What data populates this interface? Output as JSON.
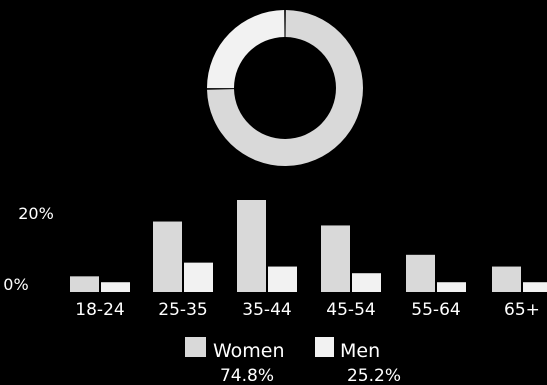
{
  "chart_data": [
    {
      "type": "pie",
      "style": "donut",
      "slices": [
        {
          "name": "Women",
          "value": 74.8
        },
        {
          "name": "Men",
          "value": 25.2
        }
      ],
      "colors": {
        "Women": "#d9d9d9",
        "Men": "#f2f2f2"
      }
    },
    {
      "type": "bar",
      "categories": [
        "18-24",
        "25-35",
        "35-44",
        "45-54",
        "55-64",
        "65+"
      ],
      "series": [
        {
          "name": "Women",
          "values": [
            4,
            18,
            23.5,
            17,
            9.5,
            6.5
          ]
        },
        {
          "name": "Men",
          "values": [
            2.5,
            7.5,
            6.5,
            4.8,
            2.5,
            2.5
          ]
        }
      ],
      "ytick_labels": [
        "20%",
        "0%"
      ],
      "ylim": [
        0,
        24
      ],
      "legend": [
        {
          "name": "Women",
          "pct": "74.8%"
        },
        {
          "name": "Men",
          "pct": "25.2%"
        }
      ],
      "legend_position": "bottom-center",
      "grid": false,
      "colors": {
        "Women": "#d9d9d9",
        "Men": "#f2f2f2"
      }
    }
  ],
  "colors": {
    "background": "#000000",
    "text": "#ffffff",
    "women": "#d9d9d9",
    "men": "#f2f2f2"
  }
}
